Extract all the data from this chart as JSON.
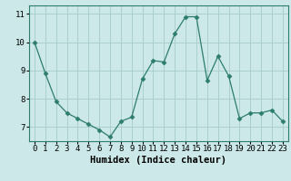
{
  "x": [
    0,
    1,
    2,
    3,
    4,
    5,
    6,
    7,
    8,
    9,
    10,
    11,
    12,
    13,
    14,
    15,
    16,
    17,
    18,
    19,
    20,
    21,
    22,
    23
  ],
  "y": [
    10.0,
    8.9,
    7.9,
    7.5,
    7.3,
    7.1,
    6.9,
    6.65,
    7.2,
    7.35,
    8.7,
    9.35,
    9.3,
    10.3,
    10.9,
    10.9,
    8.65,
    9.5,
    8.8,
    7.3,
    7.5,
    7.5,
    7.6,
    7.2
  ],
  "line_color": "#2d7d6e",
  "marker": "D",
  "marker_size": 2.5,
  "bg_color": "#cce8e8",
  "grid_color": "#aacece",
  "xlabel": "Humidex (Indice chaleur)",
  "ylim": [
    6.5,
    11.3
  ],
  "yticks": [
    7,
    8,
    9,
    10,
    11
  ],
  "xticks": [
    0,
    1,
    2,
    3,
    4,
    5,
    6,
    7,
    8,
    9,
    10,
    11,
    12,
    13,
    14,
    15,
    16,
    17,
    18,
    19,
    20,
    21,
    22,
    23
  ],
  "xlabel_fontsize": 7.5,
  "tick_fontsize": 6.5,
  "line_width": 0.9
}
